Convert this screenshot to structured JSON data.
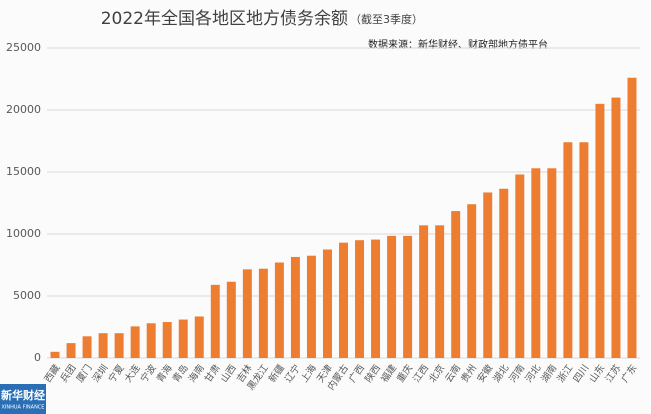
{
  "chart_data": {
    "type": "bar",
    "title": "2022年全国各地区地方债务余额",
    "title_note": "（截至3季度）",
    "source": "数据来源：新华财经、财政部地方债平台",
    "logo": "新华财经",
    "logo_sub": "XINHUA FINANCE",
    "categories": [
      "西藏",
      "兵团",
      "厦门",
      "深圳",
      "宁夏",
      "大连",
      "宁波",
      "青海",
      "青岛",
      "海南",
      "甘肃",
      "山西",
      "吉林",
      "黑龙江",
      "新疆",
      "辽宁",
      "上海",
      "天津",
      "内蒙古",
      "广西",
      "陕西",
      "福建",
      "重庆",
      "江西",
      "北京",
      "云南",
      "贵州",
      "安徽",
      "湖北",
      "河南",
      "河北",
      "湖南",
      "浙江",
      "四川",
      "山东",
      "江苏",
      "广东"
    ],
    "values": [
      500,
      1200,
      1750,
      2000,
      2000,
      2550,
      2800,
      2900,
      3100,
      3350,
      5900,
      6150,
      7150,
      7200,
      7700,
      8150,
      8250,
      8750,
      9300,
      9500,
      9550,
      9850,
      9850,
      10700,
      10700,
      11850,
      12400,
      13350,
      13650,
      14800,
      15300,
      15300,
      17400,
      17400,
      20500,
      21000,
      22600
    ],
    "color": "#ed7d31",
    "ylim": [
      0,
      25000
    ],
    "yticks": [
      0,
      5000,
      10000,
      15000,
      20000,
      25000
    ],
    "grid": true
  }
}
